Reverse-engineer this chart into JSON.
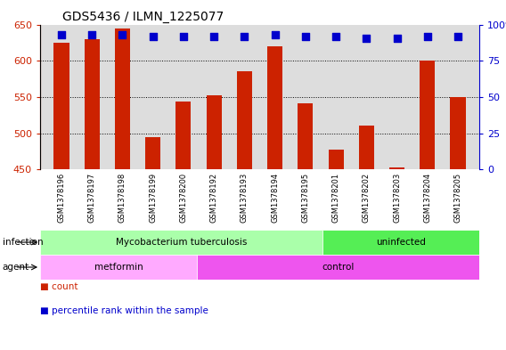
{
  "title": "GDS5436 / ILMN_1225077",
  "samples": [
    "GSM1378196",
    "GSM1378197",
    "GSM1378198",
    "GSM1378199",
    "GSM1378200",
    "GSM1378192",
    "GSM1378193",
    "GSM1378194",
    "GSM1378195",
    "GSM1378201",
    "GSM1378202",
    "GSM1378203",
    "GSM1378204",
    "GSM1378205"
  ],
  "counts": [
    625,
    630,
    645,
    495,
    544,
    553,
    586,
    620,
    541,
    477,
    510,
    452,
    600,
    550
  ],
  "percentiles": [
    93,
    93,
    93,
    92,
    92,
    92,
    92,
    93,
    92,
    92,
    91,
    91,
    92,
    92
  ],
  "ylim_left": [
    450,
    650
  ],
  "ylim_right": [
    0,
    100
  ],
  "yticks_left": [
    450,
    500,
    550,
    600,
    650
  ],
  "yticks_right": [
    0,
    25,
    50,
    75,
    100
  ],
  "grid_values": [
    500,
    550,
    600
  ],
  "infection_groups": [
    {
      "label": "Mycobacterium tuberculosis",
      "start": 0,
      "end": 9,
      "color": "#AAFFAA"
    },
    {
      "label": "uninfected",
      "start": 9,
      "end": 14,
      "color": "#55EE55"
    }
  ],
  "agent_groups": [
    {
      "label": "metformin",
      "start": 0,
      "end": 5,
      "color": "#FFAAFF"
    },
    {
      "label": "control",
      "start": 5,
      "end": 14,
      "color": "#EE55EE"
    }
  ],
  "bar_color": "#CC2200",
  "dot_color": "#0000CC",
  "bar_width": 0.5,
  "dot_size": 30,
  "left_axis_color": "#CC2200",
  "right_axis_color": "#0000CC",
  "legend_items": [
    {
      "label": "count",
      "color": "#CC2200"
    },
    {
      "label": "percentile rank within the sample",
      "color": "#0000CC"
    }
  ],
  "plot_bg_color": "#DDDDDD",
  "tick_label_bg": "#CCCCCC",
  "infection_label": "infection",
  "agent_label": "agent"
}
